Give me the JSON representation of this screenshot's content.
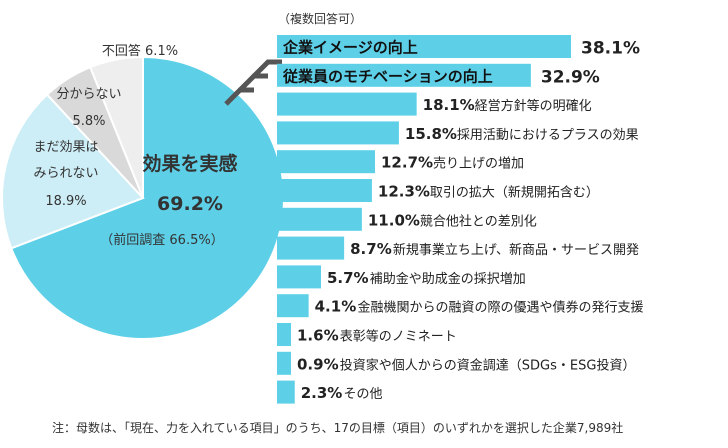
{
  "colors": {
    "accent": "#5dd0e8",
    "accent_light": "#cdeef6",
    "gray": "#d9d9d9",
    "light_gray": "#eeeeee",
    "arrow": "#555555"
  },
  "chart_data": [
    {
      "type": "pie",
      "slices": [
        {
          "label": "効果を実感",
          "value": 69.2,
          "value_text": "69.2%",
          "sub": "（前回調査 66.5%）"
        },
        {
          "label": "まだ効果は\nみられない",
          "value": 18.9,
          "value_text": "18.9%"
        },
        {
          "label": "分からない",
          "value": 5.8,
          "value_text": "5.8%"
        },
        {
          "label": "不回答",
          "value": 6.1,
          "value_text": "6.1%"
        }
      ]
    },
    {
      "type": "bar",
      "orientation": "horizontal",
      "note": "（複数回答可）",
      "xlim": [
        0,
        40
      ],
      "categories": [
        "企業イメージの向上",
        "従業員のモチベーションの向上",
        "経営方針等の明確化",
        "採用活動におけるプラスの効果",
        "売り上げの増加",
        "取引の拡大（新規開拓含む）",
        "競合他社との差別化",
        "新規事業立ち上げ、新商品・サービス開発",
        "補助金や助成金の採択増加",
        "金融機関からの融資の際の優遇や債券の発行支援",
        "表彰等のノミネート",
        "投資家や個人からの資金調達（SDGs・ESG投資）",
        "その他"
      ],
      "values": [
        38.1,
        32.9,
        18.1,
        15.8,
        12.7,
        12.3,
        11.0,
        8.7,
        5.7,
        4.1,
        1.6,
        0.9,
        2.3
      ],
      "value_labels": [
        "38.1%",
        "32.9%",
        "18.1%",
        "15.8%",
        "12.7%",
        "12.3%",
        "11.0%",
        "8.7%",
        "5.7%",
        "4.1%",
        "1.6%",
        "0.9%",
        "2.3%"
      ]
    }
  ],
  "footnote": "注：母数は、「現在、力を入れている項目」のうち、17の目標（項目）のいずれかを選択した企業7,989社"
}
